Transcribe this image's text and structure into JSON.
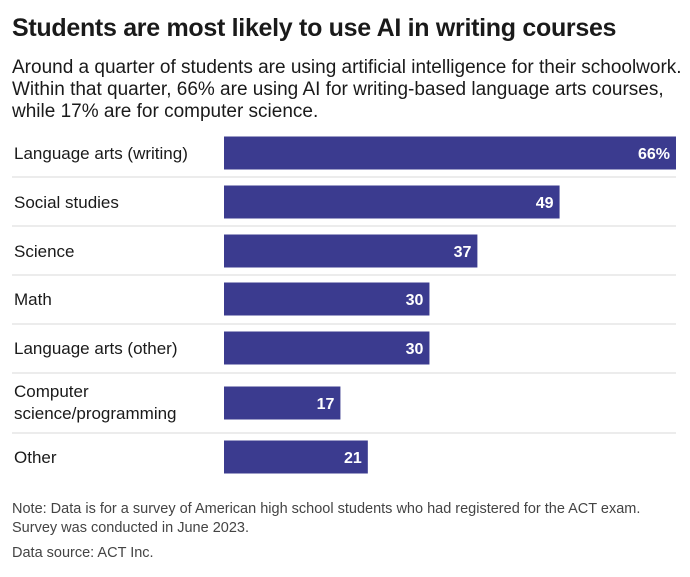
{
  "chart_data": {
    "type": "bar",
    "orientation": "horizontal",
    "title": "Students are most likely to use AI in writing courses",
    "subtitle": "Around a quarter of students are using artificial intelligence for their schoolwork. Within that quarter, 66% are using AI for writing-based language arts courses, while 17% are for computer science.",
    "categories": [
      "Language arts (writing)",
      "Social studies",
      "Science",
      "Math",
      "Language arts (other)",
      "Computer science/programming",
      "Other"
    ],
    "category_lines": [
      [
        "Language arts (writing)"
      ],
      [
        "Social studies"
      ],
      [
        "Science"
      ],
      [
        "Math"
      ],
      [
        "Language arts (other)"
      ],
      [
        "Computer",
        "science/programming"
      ],
      [
        "Other"
      ]
    ],
    "values": [
      66,
      49,
      37,
      30,
      30,
      17,
      21
    ],
    "value_labels": [
      "66%",
      "49",
      "37",
      "30",
      "30",
      "17",
      "21"
    ],
    "xlim": [
      0,
      66
    ],
    "bar_color": "#3b3b8f",
    "grid": false
  },
  "footer": {
    "note": "Note: Data is for a survey of American high school students who had registered for the ACT exam. Survey was conducted in June 2023.",
    "source": "Data source: ACT Inc."
  }
}
